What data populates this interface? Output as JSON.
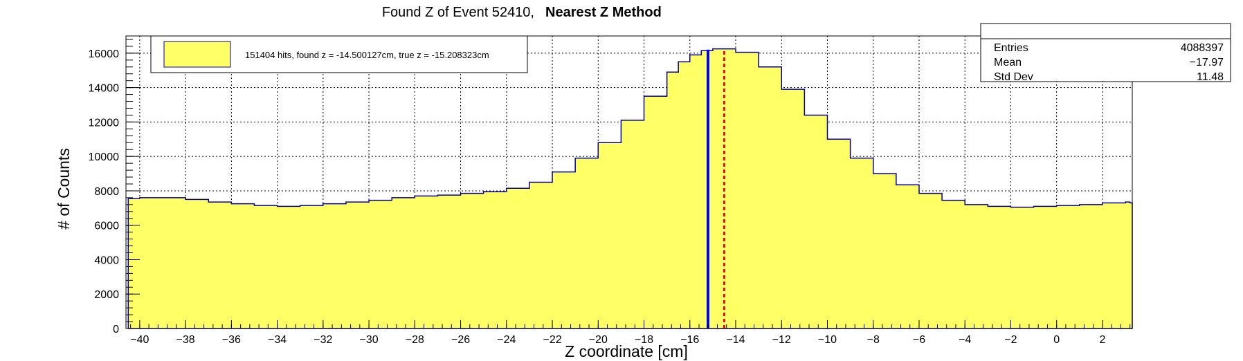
{
  "title": {
    "prefix": "Found Z of Event 52410,",
    "method": "Nearest Z Method"
  },
  "legend": {
    "text": "151404 hits, found z = -14.500127cm, true z = -15.208323cm",
    "fill_color": "#ffff66"
  },
  "stats": {
    "rows": [
      {
        "label": "Entries",
        "value": "4088397"
      },
      {
        "label": "Mean",
        "value": "−17.97"
      },
      {
        "label": "Std Dev",
        "value": "11.48"
      }
    ]
  },
  "chart_data": {
    "type": "area",
    "title": "Found Z of Event 52410, Nearest Z Method",
    "xlabel": "Z coordinate [cm]",
    "ylabel": "# of Counts",
    "xlim": [
      -40.6,
      3.3
    ],
    "ylim": [
      0,
      17000
    ],
    "x_ticks": [
      -40,
      -38,
      -36,
      -34,
      -32,
      -30,
      -28,
      -26,
      -24,
      -22,
      -20,
      -18,
      -16,
      -14,
      -12,
      -10,
      -8,
      -6,
      -4,
      -2,
      0,
      2
    ],
    "y_ticks": [
      0,
      2000,
      4000,
      6000,
      8000,
      10000,
      12000,
      14000,
      16000
    ],
    "grid": true,
    "fill_color": "#ffff66",
    "line_color": "#000099",
    "x": [
      -40.5,
      -40,
      -39,
      -38,
      -37,
      -36,
      -35,
      -34,
      -33,
      -32,
      -31,
      -30,
      -29,
      -28,
      -27,
      -26,
      -25,
      -24,
      -23,
      -22,
      -21,
      -20,
      -19,
      -18,
      -17,
      -16.5,
      -16,
      -15.5,
      -15,
      -14.5,
      -14,
      -13,
      -12,
      -11,
      -10,
      -9,
      -8,
      -7,
      -6,
      -5,
      -4,
      -3,
      -2,
      -1,
      0,
      1,
      2,
      3,
      3.2
    ],
    "y": [
      7550,
      7600,
      7600,
      7500,
      7350,
      7250,
      7150,
      7100,
      7150,
      7250,
      7350,
      7450,
      7600,
      7700,
      7750,
      7850,
      7950,
      8150,
      8500,
      9100,
      9900,
      10800,
      12100,
      13500,
      14900,
      15500,
      15900,
      16150,
      16250,
      16250,
      16050,
      15200,
      13900,
      12400,
      11000,
      9900,
      9000,
      8350,
      7850,
      7450,
      7200,
      7100,
      7050,
      7100,
      7150,
      7200,
      7300,
      7350,
      7300
    ],
    "found_z": -14.500127,
    "true_z": -15.208323,
    "found_z_color": "#ff0000",
    "true_z_color": "#0000ff"
  }
}
